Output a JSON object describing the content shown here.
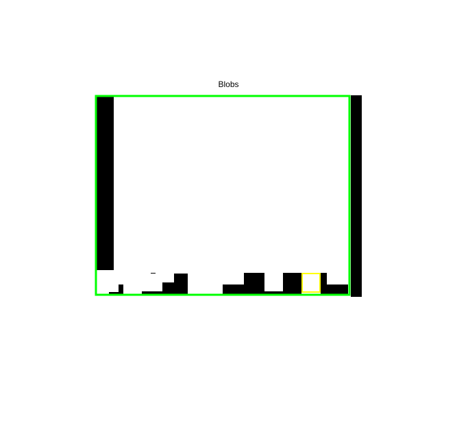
{
  "figure": {
    "title": "Blobs"
  },
  "colors": {
    "background": "#ffffff",
    "blob": "#000000",
    "outer_bounding_box": "#00ff00",
    "selected_bounding_box": "#ffff00"
  },
  "selection": {
    "selected_box_count": 1,
    "outer_box_count": 1
  }
}
